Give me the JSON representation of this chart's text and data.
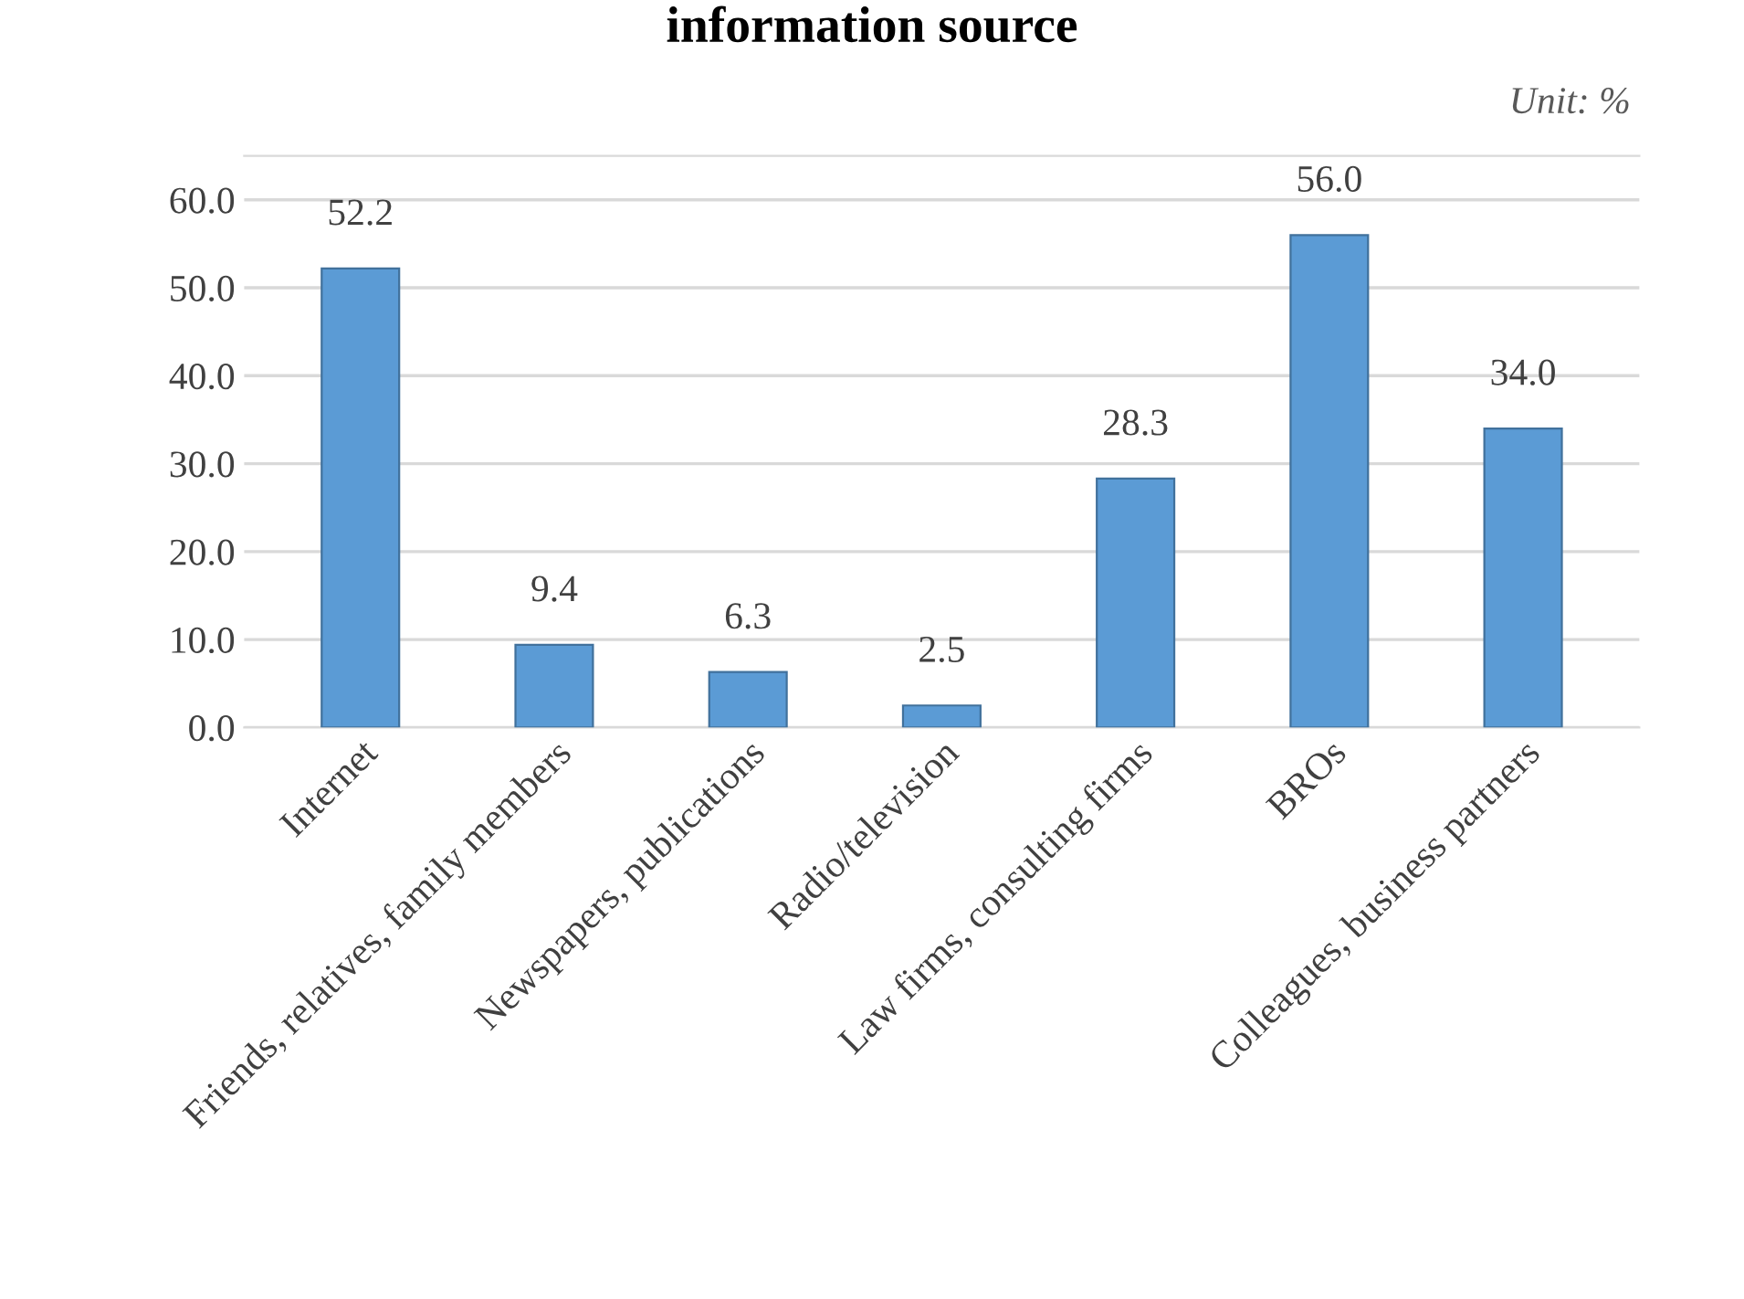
{
  "chart_data": {
    "type": "bar",
    "title": "information source",
    "annotations": [
      "Unit: %"
    ],
    "categories": [
      "Internet",
      "Friends, relatives, family members",
      "Newspapers, publications",
      "Radio/television",
      "Law firms, consulting firms",
      "BROs",
      "Colleagues, business partners"
    ],
    "values": [
      52.2,
      9.4,
      6.3,
      2.5,
      28.3,
      56.0,
      34.0
    ],
    "value_labels": [
      "52.2",
      "9.4",
      "6.3",
      "2.5",
      "28.3",
      "56.0",
      "34.0"
    ],
    "color": "#5b9bd5",
    "ylim": [
      0,
      65
    ],
    "yticks": [
      {
        "value": 0,
        "label": "0.0"
      },
      {
        "value": 10,
        "label": "10.0"
      },
      {
        "value": 20,
        "label": "20.0"
      },
      {
        "value": 30,
        "label": "30.0"
      },
      {
        "value": 40,
        "label": "40.0"
      },
      {
        "value": 50,
        "label": "50.0"
      },
      {
        "value": 60,
        "label": "60.0"
      }
    ],
    "grid": "y"
  }
}
